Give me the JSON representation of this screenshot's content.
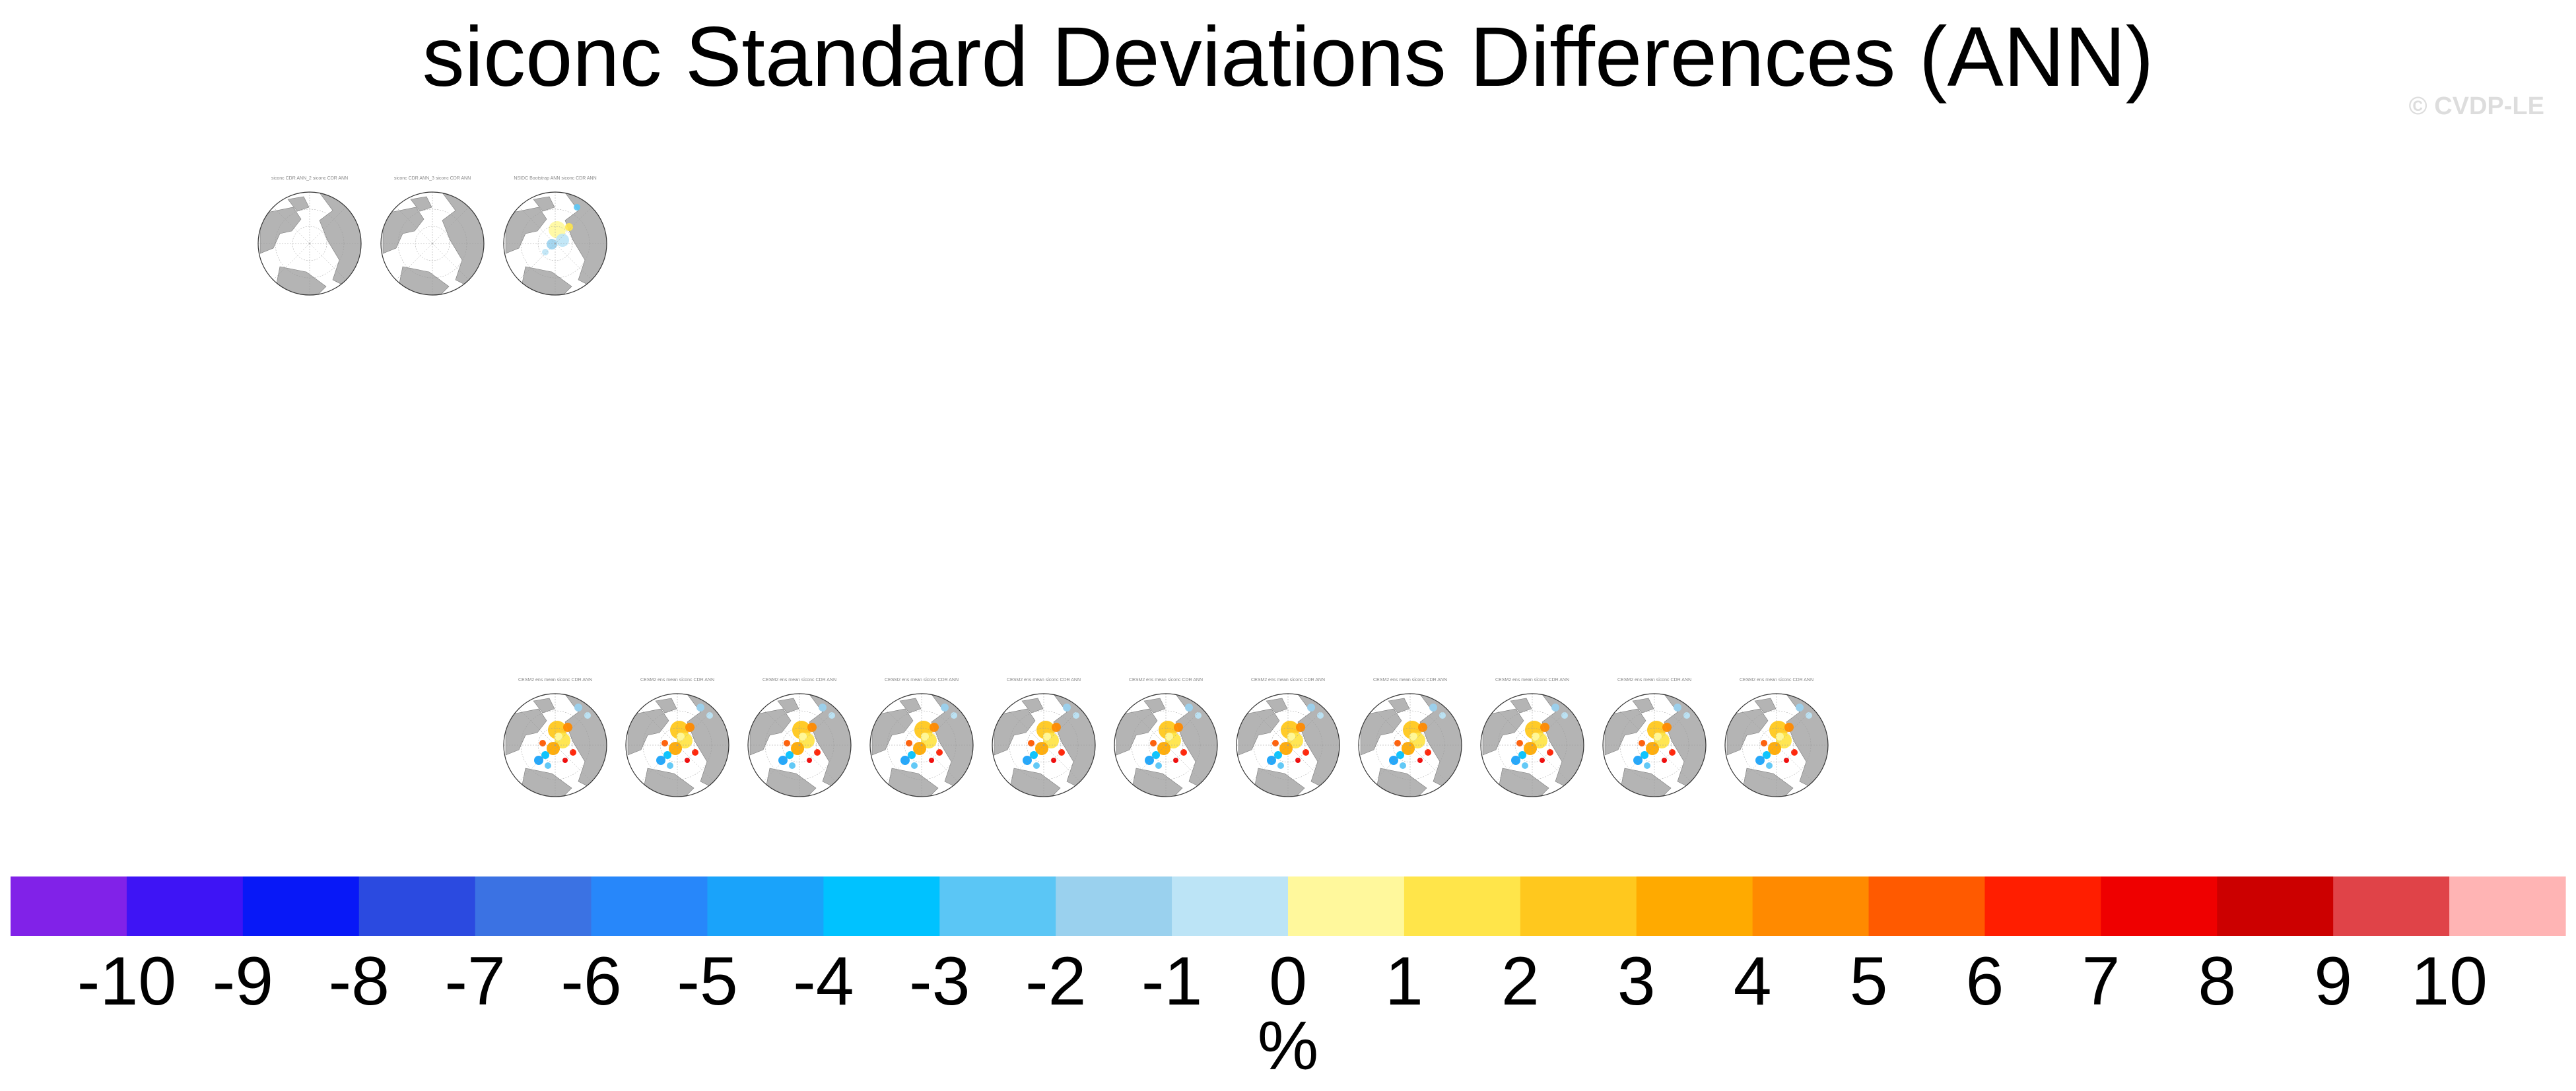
{
  "title": "siconc Standard Deviations Differences (ANN)",
  "watermark": "© CVDP-LE",
  "panels_top": [
    {
      "title": "siconc CDR ANN_2 siconc CDR ANN",
      "variant": "obs"
    },
    {
      "title": "siconc CDR ANN_3 siconc CDR ANN",
      "variant": "obs"
    },
    {
      "title": "NSIDC Bootstrap ANN siconc CDR ANN",
      "variant": "light"
    }
  ],
  "panels_bottom": [
    {
      "title": "CESM2 ens mean siconc CDR ANN",
      "variant": "model"
    },
    {
      "title": "CESM2 ens mean siconc CDR ANN",
      "variant": "model"
    },
    {
      "title": "CESM2 ens mean siconc CDR ANN",
      "variant": "model"
    },
    {
      "title": "CESM2 ens mean siconc CDR ANN",
      "variant": "model"
    },
    {
      "title": "CESM2 ens mean siconc CDR ANN",
      "variant": "model"
    },
    {
      "title": "CESM2 ens mean siconc CDR ANN",
      "variant": "model"
    },
    {
      "title": "CESM2 ens mean siconc CDR ANN",
      "variant": "model"
    },
    {
      "title": "CESM2 ens mean siconc CDR ANN",
      "variant": "model"
    },
    {
      "title": "CESM2 ens mean siconc CDR ANN",
      "variant": "model"
    },
    {
      "title": "CESM2 ens mean siconc CDR ANN",
      "variant": "model"
    },
    {
      "title": "CESM2 ens mean siconc CDR ANN",
      "variant": "model"
    }
  ],
  "chart_data": {
    "type": "heatmap",
    "title": "siconc Standard Deviations Differences (ANN)",
    "colorbar": {
      "levels": [
        -10,
        -9,
        -8,
        -7,
        -6,
        -5,
        -4,
        -3,
        -2,
        -1,
        0,
        1,
        2,
        3,
        4,
        5,
        6,
        7,
        8,
        9,
        10
      ],
      "tick_labels": [
        "-10",
        "-9",
        "-8",
        "-7",
        "-6",
        "-5",
        "-4",
        "-3",
        "-2",
        "-1",
        "0",
        "1",
        "2",
        "3",
        "4",
        "5",
        "6",
        "7",
        "8",
        "9",
        "10"
      ],
      "colors": [
        "#8122e8",
        "#3e14f5",
        "#0818f7",
        "#2b4ae0",
        "#3b72e3",
        "#2787fa",
        "#1aa3fa",
        "#00c2ff",
        "#5bc6f5",
        "#9ad1ee",
        "#bce4f6",
        "#fff89c",
        "#ffe54a",
        "#ffc81e",
        "#ffaa00",
        "#ff8a00",
        "#ff5a00",
        "#ff1e00",
        "#ef0000",
        "#cc0000",
        "#e04348",
        "#ffb4b4"
      ],
      "unit": "%",
      "extend": "both"
    },
    "land_color": "#b4b4b4",
    "ocean_color": "#ffffff"
  }
}
